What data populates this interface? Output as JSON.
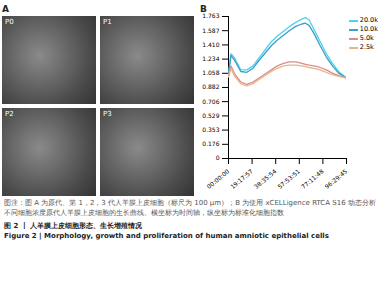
{
  "panel_a": {
    "label": "A",
    "images": [
      "P0",
      "P1",
      "P2",
      "P3"
    ]
  },
  "panel_b": {
    "label": "B"
  },
  "chart_data": {
    "type": "line",
    "x": [
      0,
      2,
      5,
      10,
      15,
      20,
      25,
      30,
      35,
      40,
      45,
      50,
      55,
      60,
      63,
      66,
      70,
      75,
      80,
      85,
      90,
      96.4958
    ],
    "series": [
      {
        "name": "20.0k",
        "color": "#4fd3e8",
        "values": [
          1.05,
          1.3,
          1.25,
          1.1,
          1.1,
          1.15,
          1.25,
          1.35,
          1.45,
          1.52,
          1.58,
          1.64,
          1.69,
          1.73,
          1.75,
          1.72,
          1.6,
          1.45,
          1.3,
          1.18,
          1.08,
          1.0
        ]
      },
      {
        "name": "10.0k",
        "color": "#3a9fc9",
        "values": [
          1.04,
          1.28,
          1.22,
          1.08,
          1.07,
          1.12,
          1.22,
          1.31,
          1.4,
          1.47,
          1.53,
          1.59,
          1.64,
          1.67,
          1.68,
          1.65,
          1.55,
          1.4,
          1.26,
          1.15,
          1.06,
          1.0
        ]
      },
      {
        "name": "5.0k",
        "color": "#d98f86",
        "values": [
          1.02,
          1.15,
          1.05,
          0.95,
          0.92,
          0.95,
          1.0,
          1.05,
          1.1,
          1.15,
          1.18,
          1.2,
          1.2,
          1.18,
          1.17,
          1.16,
          1.15,
          1.13,
          1.1,
          1.06,
          1.03,
          1.0
        ]
      },
      {
        "name": "2.5k",
        "color": "#e8b48a",
        "values": [
          1.01,
          1.12,
          1.02,
          0.93,
          0.9,
          0.93,
          0.98,
          1.03,
          1.08,
          1.12,
          1.15,
          1.16,
          1.16,
          1.15,
          1.14,
          1.13,
          1.12,
          1.1,
          1.07,
          1.04,
          1.02,
          1.0
        ]
      }
    ],
    "xlim": [
      0,
      96.4958
    ],
    "xticks": [
      {
        "value": 0,
        "label": "00:00:00"
      },
      {
        "value": 19.2992,
        "label": "19:17:57"
      },
      {
        "value": 38.5983,
        "label": "38:35:54"
      },
      {
        "value": 57.8975,
        "label": "57:53:51"
      },
      {
        "value": 77.1967,
        "label": "77:11:48"
      },
      {
        "value": 96.4958,
        "label": "96:29:45"
      }
    ],
    "ylim": [
      0,
      1.763
    ],
    "yticks": [
      0,
      0.176,
      0.353,
      0.529,
      0.706,
      0.882,
      1.058,
      1.234,
      {
        "value": 1.41,
        "label": "1.410"
      },
      1.587,
      1.763
    ],
    "grid": false,
    "legend": "right"
  },
  "caption": {
    "note": "图注：图 A 为原代、第 1，2，3 代人羊膜上皮细胞（标尺为 100 μm）；B 为使用 xCELLigence RTCA S16 动态分析不同细胞浓度原代人羊膜上皮细胞的生长曲线。横坐标为时间轴，纵坐标为标准化细胞指数",
    "title_zh": "图 2 丨 人羊膜上皮细胞形态、生长增殖情况",
    "title_en": "Figure 2 | Morphology, growth and proliferation of human amniotic epithelial cells"
  }
}
